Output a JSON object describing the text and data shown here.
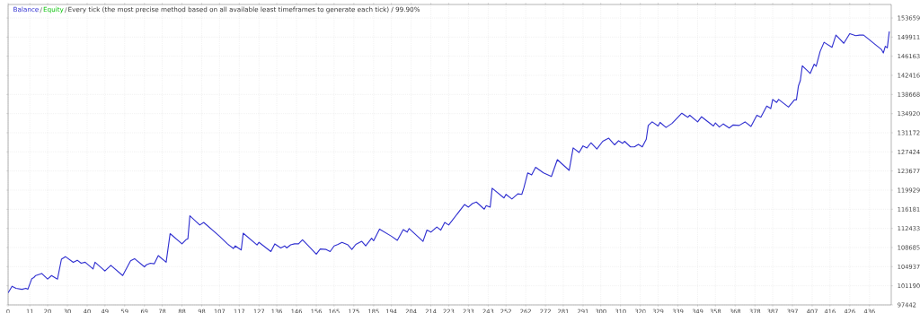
{
  "chart_data": {
    "type": "line",
    "title": "Every tick (the most precise method based on all available least timeframes to generate each tick) / 99.90%",
    "legend": "top left",
    "grid": true,
    "x": [
      0,
      2,
      4,
      7,
      9,
      10,
      12,
      13,
      14,
      17,
      20,
      22,
      24,
      25,
      27,
      29,
      33,
      35,
      37,
      39,
      43,
      44,
      49,
      52,
      58,
      62,
      64,
      69,
      70,
      72,
      74,
      76,
      80,
      82,
      88,
      90,
      91,
      92,
      97,
      99,
      107,
      111,
      114,
      115,
      118,
      119,
      126,
      127,
      133,
      135,
      138,
      140,
      141,
      143,
      145,
      147,
      149,
      152,
      156,
      158,
      161,
      163,
      165,
      167,
      169,
      172,
      174,
      176,
      179,
      181,
      184,
      185,
      188,
      194,
      197,
      200,
      202,
      203,
      210,
      212,
      214,
      217,
      219,
      221,
      223,
      231,
      233,
      235,
      237,
      241,
      242,
      244,
      245,
      251,
      252,
      255,
      258,
      260,
      261,
      263,
      265,
      267,
      271,
      275,
      278,
      284,
      286,
      289,
      291,
      293,
      295,
      298,
      301,
      304,
      307,
      309,
      311,
      312,
      315,
      317,
      319,
      321,
      323,
      324,
      326,
      329,
      330,
      333,
      336,
      338,
      341,
      344,
      345,
      349,
      351,
      357,
      358,
      360,
      362,
      365,
      367,
      370,
      373,
      376,
      379,
      381,
      384,
      386,
      387,
      389,
      390,
      395,
      398,
      399,
      400,
      401,
      402,
      406,
      408,
      409,
      411,
      413,
      417,
      419,
      423,
      426,
      429,
      431,
      433,
      442,
      443,
      444,
      445,
      446
    ],
    "series": [
      {
        "name": "Balance",
        "color": "#3030d0",
        "values": [
          99800,
          101100,
          100700,
          100500,
          100700,
          100500,
          102600,
          102800,
          103200,
          103600,
          102500,
          103200,
          102700,
          102500,
          106400,
          106900,
          105800,
          106200,
          105600,
          105800,
          104500,
          105800,
          104100,
          105200,
          103200,
          106100,
          106500,
          104900,
          105300,
          105600,
          105500,
          107100,
          105800,
          111400,
          109400,
          110200,
          110400,
          114900,
          113100,
          113600,
          110900,
          109400,
          108500,
          109000,
          108200,
          111500,
          109200,
          109700,
          107900,
          109400,
          108600,
          109000,
          108600,
          109200,
          109400,
          109400,
          110200,
          109000,
          107400,
          108400,
          108300,
          107900,
          109000,
          109300,
          109700,
          109200,
          108300,
          109300,
          109900,
          109000,
          110500,
          110000,
          112300,
          110900,
          110100,
          112200,
          111700,
          112400,
          109900,
          112100,
          111700,
          112700,
          112100,
          113600,
          113100,
          117100,
          116600,
          117300,
          117600,
          116200,
          116900,
          116600,
          120300,
          118400,
          119100,
          118200,
          119200,
          119100,
          120300,
          123300,
          122900,
          124400,
          123300,
          122600,
          125900,
          123800,
          128200,
          127300,
          128600,
          128200,
          129200,
          128000,
          129500,
          130100,
          128800,
          129600,
          129100,
          129500,
          128400,
          128400,
          128900,
          128400,
          129900,
          132600,
          133300,
          132500,
          133200,
          132200,
          133000,
          133800,
          135000,
          134200,
          134600,
          133300,
          134300,
          132500,
          133100,
          132300,
          132900,
          132100,
          132700,
          132600,
          133300,
          132400,
          134600,
          134200,
          136400,
          135900,
          137700,
          137100,
          137700,
          136200,
          137600,
          137600,
          140300,
          141400,
          144300,
          142800,
          144600,
          144200,
          147100,
          148900,
          147900,
          150300,
          148700,
          150600,
          150200,
          150300,
          150300,
          147500,
          146800,
          148100,
          147800,
          151000
        ]
      }
    ],
    "annotations": [
      "Equity"
    ],
    "xlim": [
      0,
      447
    ],
    "ylim": [
      97442,
      156300
    ],
    "xticks": [
      0,
      11,
      20,
      30,
      40,
      49,
      59,
      69,
      78,
      88,
      98,
      107,
      117,
      127,
      136,
      146,
      156,
      165,
      175,
      185,
      194,
      204,
      214,
      223,
      233,
      243,
      252,
      262,
      272,
      281,
      291,
      300,
      310,
      320,
      329,
      339,
      349,
      358,
      368,
      378,
      387,
      397,
      407,
      416,
      426,
      436
    ],
    "yticks": [
      97442,
      101190,
      104937,
      108685,
      112433,
      116181,
      119929,
      123677,
      127424,
      131172,
      134920,
      138668,
      142416,
      146163,
      149911,
      153659
    ]
  }
}
